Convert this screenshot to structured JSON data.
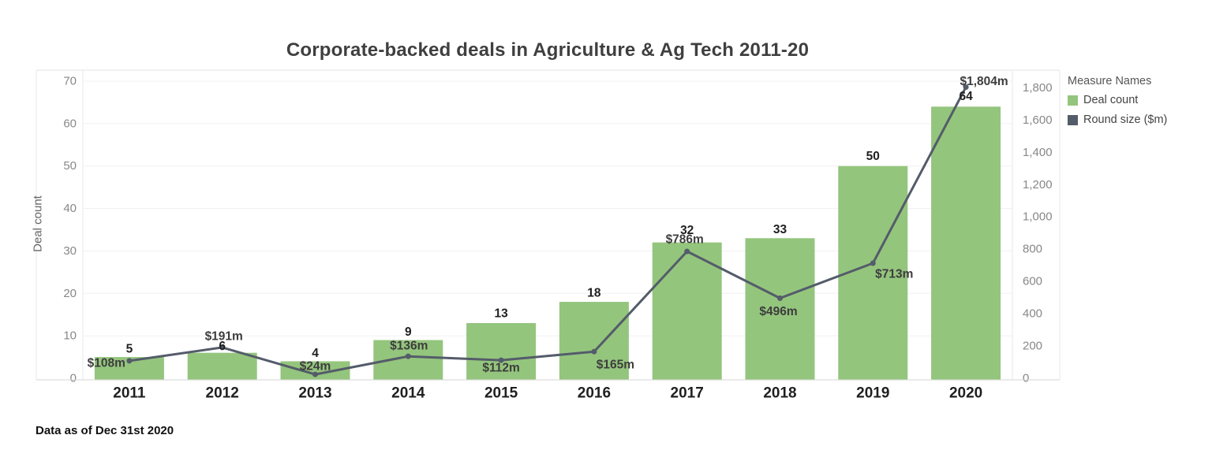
{
  "title": "Corporate-backed deals in Agriculture & Ag Tech 2011-20",
  "footer": "Data as of Dec 31st 2020",
  "legend": {
    "title": "Measure Names",
    "items": [
      {
        "label": "Deal count",
        "color": "#94c57d"
      },
      {
        "label": "Round size ($m)",
        "color": "#545c6a"
      }
    ]
  },
  "chart_data": {
    "type": "bar",
    "subtype": "dual-axis bar + line",
    "title": "Corporate-backed deals in Agriculture & Ag Tech 2011-20",
    "categories": [
      "2011",
      "2012",
      "2013",
      "2014",
      "2015",
      "2016",
      "2017",
      "2018",
      "2019",
      "2020"
    ],
    "series": [
      {
        "name": "Deal count",
        "type": "bar",
        "axis": "left",
        "color": "#94c57d",
        "values": [
          5,
          6,
          4,
          9,
          13,
          18,
          32,
          33,
          50,
          64
        ],
        "value_labels": [
          "5",
          "6",
          "4",
          "9",
          "13",
          "18",
          "32",
          "33",
          "50",
          "64"
        ]
      },
      {
        "name": "Round size ($m)",
        "type": "line",
        "axis": "right",
        "color": "#545c6a",
        "values": [
          108,
          191,
          24,
          136,
          112,
          165,
          786,
          496,
          713,
          1804
        ],
        "value_labels": [
          "$108m",
          "$191m",
          "$24m",
          "$136m",
          "$112m",
          "$165m",
          "$786m",
          "$496m",
          "$713m",
          "$1,804m"
        ]
      }
    ],
    "left_axis": {
      "label": "Deal count",
      "ticks": [
        0,
        10,
        20,
        30,
        40,
        50,
        60,
        70
      ],
      "range": [
        0,
        70
      ]
    },
    "right_axis": {
      "label": "",
      "ticks": [
        0,
        200,
        400,
        600,
        800,
        1000,
        1200,
        1400,
        1600,
        1800
      ],
      "range": [
        0,
        1840
      ]
    },
    "grid": "horizontal",
    "legend_position": "top-right",
    "footnote": "Data as of Dec 31st 2020"
  }
}
